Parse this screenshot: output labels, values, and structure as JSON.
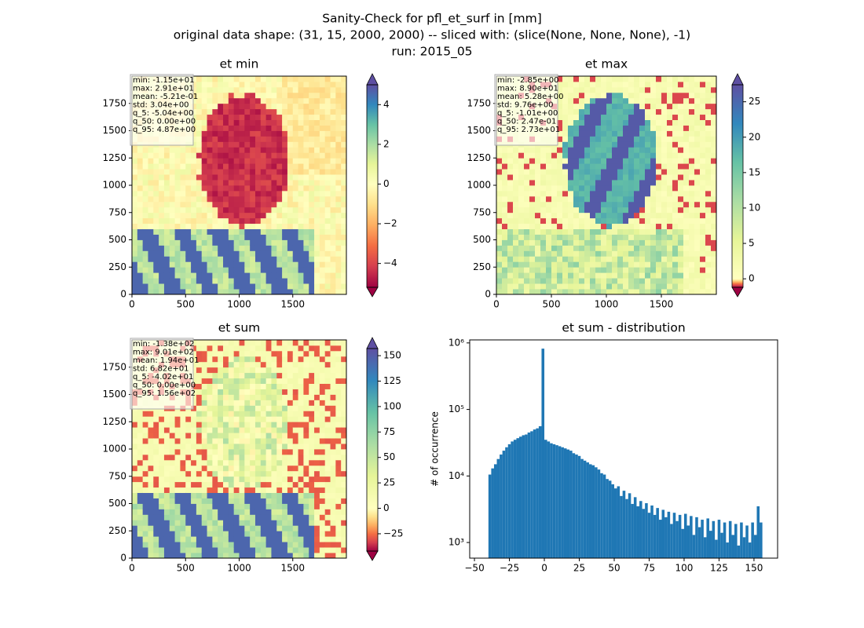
{
  "suptitle": [
    "Sanity-Check for pfl_et_surf in [mm]",
    "original data shape: (31, 15, 2000, 2000) -- sliced with: (slice(None, None, None), -1)",
    "run: 2015_05"
  ],
  "chart_data": [
    {
      "type": "heatmap",
      "title": "et min",
      "colormap": "Spectral",
      "norm_center": 0,
      "stats": [
        "min: -1.15e+01",
        "max: 2.91e+01",
        "mean: -5.21e-01",
        "std: 3.04e+00",
        "q_5: -5.04e+00",
        "q_50: 0.00e+00",
        "q_95: 4.87e+00"
      ],
      "xlim": [
        0,
        2000
      ],
      "ylim": [
        0,
        2000
      ],
      "xticks": [
        0,
        500,
        1000,
        1500
      ],
      "yticks": [
        0,
        250,
        500,
        750,
        1000,
        1250,
        1500,
        1750
      ],
      "clim": [
        -5.2,
        5.0
      ],
      "cticks": [
        {
          "value": -4,
          "label": "−4"
        },
        {
          "value": -2,
          "label": "−2"
        },
        0,
        2,
        4
      ]
    },
    {
      "type": "heatmap",
      "title": "et max",
      "colormap": "Spectral",
      "norm_center": 0,
      "stats": [
        "min: -2.85e+00",
        "max: 8.90e+01",
        "mean: 5.28e+00",
        "std: 9.76e+00",
        "q_5: -1.01e+00",
        "q_50: 2.47e-01",
        "q_95: 2.73e+01"
      ],
      "xlim": [
        0,
        2000
      ],
      "ylim": [
        0,
        2000
      ],
      "xticks": [
        0,
        500,
        1000,
        1500
      ],
      "yticks": [
        0,
        250,
        500,
        750,
        1000,
        1250,
        1500,
        1750
      ],
      "clim": [
        -1.2,
        27.4
      ],
      "cticks": [
        0,
        5,
        10,
        15,
        20,
        25
      ]
    },
    {
      "type": "heatmap",
      "title": "et sum",
      "colormap": "Spectral",
      "norm_center": 0,
      "stats": [
        "min: -1.38e+02",
        "max: 9.01e+02",
        "mean: 1.94e+01",
        "std: 6.82e+01",
        "q_5: -4.02e+01",
        "q_50: 0.00e+00",
        "q_95: 1.56e+02"
      ],
      "xlim": [
        0,
        2000
      ],
      "ylim": [
        0,
        2000
      ],
      "xticks": [
        0,
        500,
        1000,
        1500
      ],
      "yticks": [
        0,
        250,
        500,
        750,
        1000,
        1250,
        1500,
        1750
      ],
      "clim": [
        -42,
        157
      ],
      "cticks": [
        {
          "value": -25,
          "label": "−25"
        },
        0,
        25,
        50,
        75,
        100,
        125,
        150
      ]
    },
    {
      "type": "histogram",
      "title": "et sum - distribution",
      "ylabel": "# of occurrence",
      "color": "#1f77b4",
      "yscale": "log",
      "bins": [
        -40,
        -38,
        -36,
        -34,
        -32,
        -30,
        -28,
        -26,
        -24,
        -22,
        -20,
        -18,
        -16,
        -14,
        -12,
        -10,
        -8,
        -6,
        -4,
        -2,
        0,
        2,
        4,
        6,
        8,
        10,
        12,
        14,
        16,
        18,
        20,
        22,
        24,
        26,
        28,
        30,
        32,
        34,
        36,
        38,
        40,
        42,
        44,
        46,
        48,
        50,
        52,
        54,
        56,
        58,
        60,
        62,
        64,
        66,
        68,
        70,
        72,
        74,
        76,
        78,
        80,
        82,
        84,
        86,
        88,
        90,
        92,
        94,
        96,
        98,
        100,
        102,
        104,
        106,
        108,
        110,
        112,
        114,
        116,
        118,
        120,
        122,
        124,
        126,
        128,
        130,
        132,
        134,
        136,
        138,
        140,
        142,
        144,
        146,
        148,
        150,
        152,
        154,
        156
      ],
      "counts": [
        10500,
        13000,
        15000,
        18000,
        21000,
        24000,
        27000,
        30000,
        33000,
        35000,
        37000,
        39000,
        41000,
        42000,
        45000,
        47000,
        50000,
        52000,
        56000,
        820000,
        35000,
        33000,
        31000,
        30000,
        29000,
        28000,
        27000,
        26000,
        25000,
        24000,
        22000,
        21000,
        20000,
        18000,
        17000,
        16000,
        15000,
        14500,
        13500,
        12500,
        11000,
        10500,
        9000,
        8500,
        7500,
        6500,
        7000,
        5000,
        6000,
        4500,
        5500,
        3800,
        4800,
        3500,
        4200,
        3200,
        3900,
        2800,
        3600,
        2600,
        3300,
        2200,
        3100,
        2400,
        2900,
        1900,
        2800,
        2100,
        2600,
        1600,
        2700,
        1800,
        2500,
        1300,
        2400,
        1700,
        2200,
        1200,
        2300,
        1500,
        2100,
        1100,
        2200,
        1400,
        2000,
        1000,
        2100,
        1300,
        1900,
        900,
        2000,
        1200,
        1800,
        1000,
        2000,
        1300,
        3500,
        2000
      ],
      "xlim": [
        -53.4,
        166.9
      ],
      "ylim": [
        582,
        1110000
      ],
      "xticks": [
        {
          "value": -50,
          "label": "−50"
        },
        {
          "value": -25,
          "label": "−25"
        },
        0,
        25,
        50,
        75,
        100,
        125,
        150
      ],
      "yticks": [
        {
          "value": 1000,
          "label": "10³"
        },
        {
          "value": 10000,
          "label": "10⁴"
        },
        {
          "value": 100000,
          "label": "10⁵"
        },
        {
          "value": 1000000,
          "label": "10⁶"
        }
      ]
    }
  ]
}
